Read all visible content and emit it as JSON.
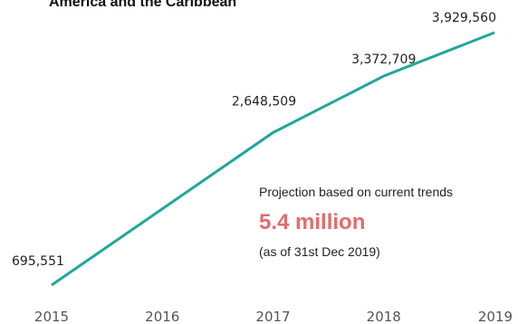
{
  "chart_data": {
    "type": "line",
    "title": "America and the Caribbean",
    "categories": [
      "2015",
      "2016",
      "2017",
      "2018",
      "2019"
    ],
    "series": [
      {
        "values": [
          695551,
          null,
          2648509,
          3372709,
          3929560
        ],
        "data_labels": [
          "695,551",
          "",
          "2,648,509",
          "3,372,709",
          "3,929,560"
        ]
      }
    ],
    "xlabel": "",
    "ylabel": "",
    "grid": false,
    "line_color": "#1fa79a",
    "annotation": {
      "line1": "Projection based on current trends",
      "headline": "5.4 million",
      "line2": "(as of 31st Dec 2019)",
      "headline_color": "#e56b6b"
    }
  }
}
